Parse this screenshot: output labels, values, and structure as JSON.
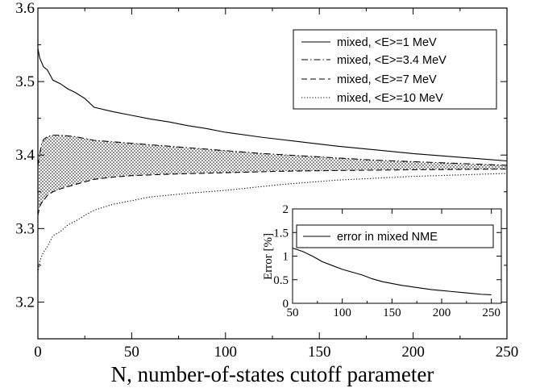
{
  "chart_data": [
    {
      "type": "line",
      "title": "",
      "xlabel": "N, number-of-states cutoff parameter",
      "ylabel": "",
      "xlim": [
        0,
        250
      ],
      "ylim": [
        3.15,
        3.6
      ],
      "xticks": [
        "0",
        "50",
        "100",
        "150",
        "200",
        "250"
      ],
      "yticks": [
        "3.2",
        "3.3",
        "3.4",
        "3.5",
        "3.6"
      ],
      "grid": false,
      "legend_position": "top-right",
      "shaded_region": "between <E>=3.4 MeV and <E>=7 MeV curves",
      "series": [
        {
          "name": "mixed, <E>=1 MeV",
          "style": "solid",
          "x": [
            0,
            1,
            3,
            5,
            8,
            12,
            16,
            20,
            25,
            30,
            40,
            50,
            60,
            70,
            80,
            90,
            100,
            120,
            140,
            160,
            180,
            200,
            220,
            240,
            250
          ],
          "y": [
            3.545,
            3.532,
            3.52,
            3.516,
            3.502,
            3.497,
            3.49,
            3.485,
            3.477,
            3.465,
            3.459,
            3.454,
            3.449,
            3.445,
            3.44,
            3.436,
            3.431,
            3.424,
            3.418,
            3.412,
            3.407,
            3.402,
            3.398,
            3.394,
            3.392
          ]
        },
        {
          "name": "mixed, <E>=3.4 MeV",
          "style": "dash-dot",
          "x": [
            0,
            1,
            2,
            3,
            5,
            8,
            12,
            20,
            30,
            40,
            50,
            60,
            80,
            100,
            120,
            140,
            160,
            180,
            200,
            220,
            240,
            250
          ],
          "y": [
            3.385,
            3.402,
            3.415,
            3.421,
            3.425,
            3.427,
            3.427,
            3.425,
            3.42,
            3.418,
            3.416,
            3.414,
            3.41,
            3.406,
            3.402,
            3.399,
            3.396,
            3.393,
            3.391,
            3.389,
            3.387,
            3.386
          ]
        },
        {
          "name": "mixed, <E>=7 MeV",
          "style": "dashed",
          "x": [
            0,
            1,
            2,
            3,
            5,
            8,
            12,
            20,
            30,
            40,
            50,
            70,
            100,
            130,
            160,
            200,
            250
          ],
          "y": [
            3.318,
            3.33,
            3.335,
            3.338,
            3.345,
            3.35,
            3.354,
            3.36,
            3.367,
            3.37,
            3.372,
            3.374,
            3.376,
            3.378,
            3.379,
            3.38,
            3.381
          ]
        },
        {
          "name": "mixed, <E>=10 MeV",
          "style": "dotted",
          "x": [
            0,
            1,
            2,
            3,
            5,
            8,
            12,
            16,
            20,
            25,
            30,
            40,
            50,
            60,
            80,
            100,
            130,
            160,
            200,
            250
          ],
          "y": [
            3.24,
            3.255,
            3.262,
            3.268,
            3.275,
            3.29,
            3.296,
            3.305,
            3.31,
            3.318,
            3.325,
            3.333,
            3.338,
            3.343,
            3.348,
            3.352,
            3.36,
            3.366,
            3.371,
            3.375
          ]
        }
      ]
    },
    {
      "type": "line",
      "title": "",
      "xlabel": "",
      "ylabel": "Error [%]",
      "xlim": [
        50,
        260
      ],
      "ylim": [
        0,
        2
      ],
      "xticks": [
        "50",
        "100",
        "150",
        "200",
        "250"
      ],
      "yticks": [
        "0",
        "0.5",
        "1",
        "1.5",
        "2"
      ],
      "legend_position": "top-right",
      "series": [
        {
          "name": "error in mixed NME",
          "style": "solid",
          "x": [
            50,
            60,
            70,
            80,
            90,
            100,
            110,
            120,
            130,
            140,
            150,
            160,
            170,
            180,
            190,
            200,
            210,
            220,
            230,
            240,
            250
          ],
          "y": [
            1.17,
            1.1,
            1.0,
            0.88,
            0.8,
            0.72,
            0.66,
            0.6,
            0.52,
            0.46,
            0.42,
            0.38,
            0.35,
            0.32,
            0.29,
            0.27,
            0.25,
            0.23,
            0.21,
            0.19,
            0.18
          ]
        }
      ]
    }
  ]
}
